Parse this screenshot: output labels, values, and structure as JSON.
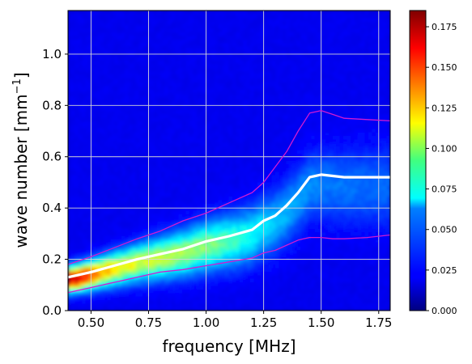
{
  "chart_data": {
    "type": "heatmap",
    "xlabel": "frequency [MHz]",
    "ylabel_main": "wave number [mm",
    "ylabel_exp": "−1",
    "ylabel_end": "]",
    "xlim": [
      0.4,
      1.8
    ],
    "ylim": [
      0.0,
      1.17
    ],
    "xticks": [
      0.5,
      0.75,
      1.0,
      1.25,
      1.5,
      1.75
    ],
    "xtick_labels": [
      "0.50",
      "0.75",
      "1.00",
      "1.25",
      "1.50",
      "1.75"
    ],
    "yticks": [
      0.0,
      0.2,
      0.4,
      0.6,
      0.8,
      1.0
    ],
    "ytick_labels": [
      "0.0",
      "0.2",
      "0.4",
      "0.6",
      "0.8",
      "1.0"
    ],
    "grid": true,
    "colormap": "jet",
    "colorbar": {
      "range": [
        0.0,
        0.185
      ],
      "ticks": [
        0.0,
        0.025,
        0.05,
        0.075,
        0.1,
        0.125,
        0.15,
        0.175
      ],
      "tick_labels": [
        "0.000",
        "0.025",
        "0.050",
        "0.075",
        "0.100",
        "0.125",
        "0.150",
        "0.175"
      ]
    },
    "series": [
      {
        "color": "#ffffff",
        "style": "thick",
        "x": [
          0.4,
          0.5,
          0.6,
          0.7,
          0.8,
          0.9,
          1.0,
          1.1,
          1.2,
          1.25,
          1.3,
          1.35,
          1.4,
          1.45,
          1.5,
          1.55,
          1.6,
          1.7,
          1.8
        ],
        "y": [
          0.13,
          0.15,
          0.175,
          0.2,
          0.22,
          0.24,
          0.27,
          0.29,
          0.315,
          0.35,
          0.37,
          0.41,
          0.46,
          0.52,
          0.53,
          0.525,
          0.52,
          0.52,
          0.52
        ]
      },
      {
        "color": "#d21ad2",
        "style": "thin",
        "x": [
          0.4,
          0.5,
          0.6,
          0.7,
          0.8,
          0.9,
          1.0,
          1.1,
          1.2,
          1.25,
          1.3,
          1.35,
          1.4,
          1.45,
          1.5,
          1.55,
          1.6,
          1.7,
          1.8
        ],
        "y": [
          0.18,
          0.21,
          0.245,
          0.28,
          0.31,
          0.35,
          0.38,
          0.42,
          0.46,
          0.5,
          0.56,
          0.62,
          0.7,
          0.77,
          0.78,
          0.765,
          0.75,
          0.745,
          0.74
        ]
      },
      {
        "color": "#d21ad2",
        "style": "thin",
        "x": [
          0.4,
          0.5,
          0.6,
          0.7,
          0.8,
          0.9,
          1.0,
          1.1,
          1.2,
          1.25,
          1.3,
          1.35,
          1.4,
          1.45,
          1.5,
          1.55,
          1.6,
          1.7,
          1.8
        ],
        "y": [
          0.07,
          0.09,
          0.11,
          0.13,
          0.15,
          0.16,
          0.175,
          0.19,
          0.205,
          0.225,
          0.235,
          0.255,
          0.275,
          0.285,
          0.285,
          0.28,
          0.28,
          0.285,
          0.295
        ]
      }
    ]
  }
}
